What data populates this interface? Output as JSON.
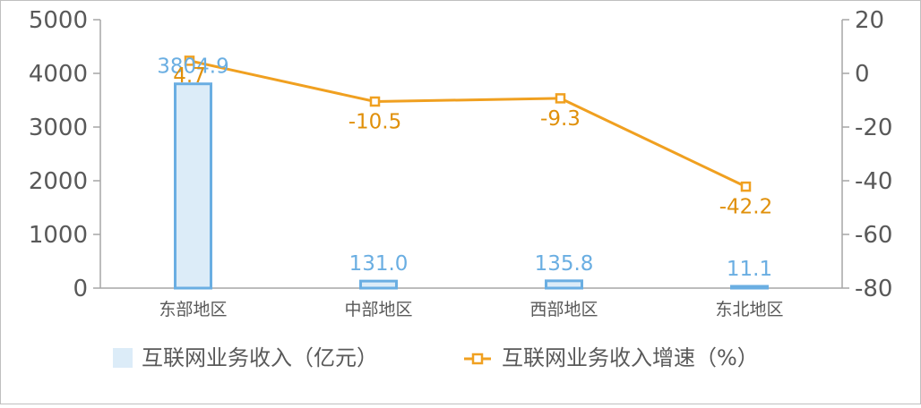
{
  "colors": {
    "bar_fill": "#dcecf8",
    "bar_stroke": "#6aaee2",
    "bar_label": "#6aaee2",
    "line": "#f0a020",
    "line_label": "#e0900a",
    "axis": "#a6a6a6",
    "tick_text": "#595959",
    "frame": "#bfbfbf"
  },
  "chart_data": {
    "type": "bar+line",
    "categories": [
      "东部地区",
      "中部地区",
      "西部地区",
      "东北地区"
    ],
    "series": [
      {
        "name": "互联网业务收入（亿元）",
        "type": "bar",
        "axis": "left",
        "values": [
          3804.9,
          131.0,
          135.8,
          11.1
        ],
        "labels": [
          "3804.9",
          "131.0",
          "135.8",
          "11.1"
        ]
      },
      {
        "name": "互联网业务收入增速（%）",
        "type": "line",
        "axis": "right",
        "values": [
          4.7,
          -10.5,
          -9.3,
          -42.2
        ],
        "labels": [
          "4.7",
          "-10.5",
          "-9.3",
          "-42.2"
        ]
      }
    ],
    "y_left": {
      "min": 0,
      "max": 5000,
      "ticks": [
        "0",
        "1000",
        "2000",
        "3000",
        "4000",
        "5000"
      ]
    },
    "y_right": {
      "min": -80,
      "max": 20,
      "ticks": [
        "-80",
        "-60",
        "-40",
        "-20",
        "0",
        "20"
      ]
    },
    "grid": false,
    "legend_position": "bottom"
  }
}
